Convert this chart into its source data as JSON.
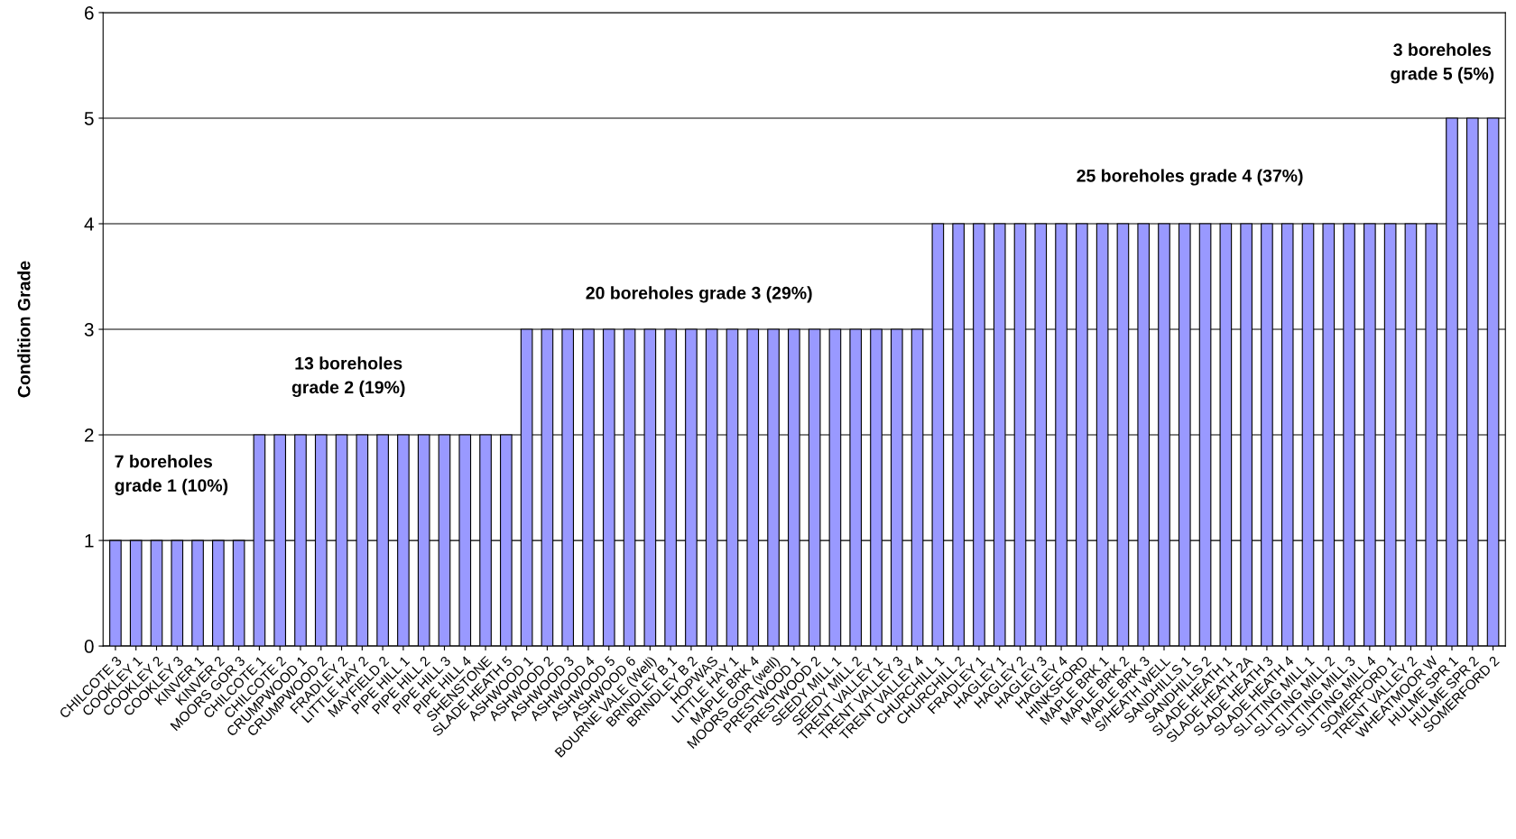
{
  "chart_data": {
    "type": "bar",
    "ylabel": "Condition Grade",
    "categories": [
      "CHILCOTE 3",
      "COOKLEY 1",
      "COOKLEY 2",
      "COOKLEY 3",
      "KINVER 1",
      "KINVER 2",
      "MOORS GOR 3",
      "CHILCOTE 1",
      "CHILCOTE 2",
      "CRUMPWOOD 1",
      "CRUMPWOOD 2",
      "FRADLEY 2",
      "LITTLE HAY 2",
      "MAYFIELD 2",
      "PIPE HILL 1",
      "PIPE HILL 2",
      "PIPE HILL 3",
      "PIPE HILL 4",
      "SHENSTONE",
      "SLADE HEATH 5",
      "ASHWOOD 1",
      "ASHWOOD 2",
      "ASHWOOD 3",
      "ASHWOOD 4",
      "ASHWOOD 5",
      "ASHWOOD 6",
      "BOURNE VALE (Well)",
      "BRINDLEY B 1",
      "BRINDLEY B 2",
      "HOPWAS",
      "LITTLE HAY 1",
      "MAPLE BRK 4",
      "MOORS GOR (well)",
      "PRESTWOOD 1",
      "PRESTWOOD 2",
      "SEEDY MILL 1",
      "SEEDY MILL 2",
      "TRENT VALLEY 1",
      "TRENT VALLEY 3",
      "TRENT VALLEY 4",
      "CHURCHILL 1",
      "CHURCHILL 2",
      "FRADLEY 1",
      "HAGLEY 1",
      "HAGLEY 2",
      "HAGLEY 3",
      "HAGLEY 4",
      "HINKSFORD",
      "MAPLE BRK 1",
      "MAPLE BRK 2",
      "MAPLE BRK 3",
      "S/HEATH WELL",
      "SANDHILLS 1",
      "SANDHILLS 2",
      "SLADE HEATH 1",
      "SLADE HEATH 2A",
      "SLADE HEATH 3",
      "SLADE HEATH 4",
      "SLITTING MILL 1",
      "SLITTING MILL 2",
      "SLITTING MILL 3",
      "SLITTING MILL 4",
      "SOMERFORD 1",
      "TRENT VALLEY 2",
      "WHEATMOOR W",
      "HULME SPR 1",
      "HULME SPR 2",
      "SOMERFORD 2"
    ],
    "values": [
      1,
      1,
      1,
      1,
      1,
      1,
      1,
      2,
      2,
      2,
      2,
      2,
      2,
      2,
      2,
      2,
      2,
      2,
      2,
      2,
      3,
      3,
      3,
      3,
      3,
      3,
      3,
      3,
      3,
      3,
      3,
      3,
      3,
      3,
      3,
      3,
      3,
      3,
      3,
      3,
      4,
      4,
      4,
      4,
      4,
      4,
      4,
      4,
      4,
      4,
      4,
      4,
      4,
      4,
      4,
      4,
      4,
      4,
      4,
      4,
      4,
      4,
      4,
      4,
      4,
      5,
      5,
      5
    ],
    "color": "#9999ff",
    "ylim": [
      0,
      6
    ],
    "yticks": [
      0,
      1,
      2,
      3,
      4,
      5,
      6
    ],
    "grid": "y",
    "legend": false,
    "annotations": [
      "7 boreholes\ngrade 1 (10%)",
      "13 boreholes\ngrade 2 (19%)",
      "20 boreholes grade 3 (29%)",
      "25 boreholes grade 4 (37%)",
      "3 boreholes\ngrade 5 (5%)"
    ]
  }
}
